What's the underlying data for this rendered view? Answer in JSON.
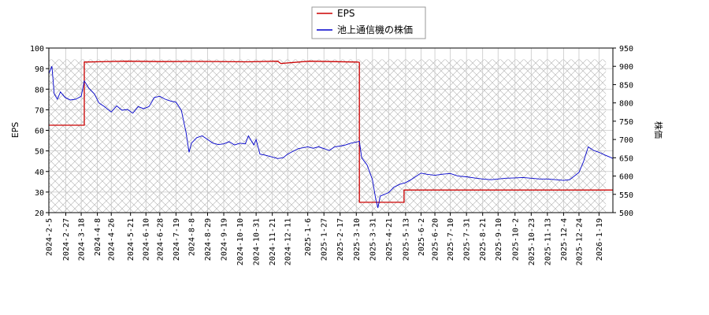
{
  "chart_data": {
    "type": "line",
    "title": "",
    "legend": {
      "position": "top-center",
      "entries": [
        "EPS",
        "池上通信機の株価"
      ]
    },
    "grid": true,
    "ylabel_left": "EPS",
    "ylabel_right": "株価",
    "ylim_left": [
      20,
      100
    ],
    "ylim_right": [
      500,
      950
    ],
    "yticks_left": [
      20,
      30,
      40,
      50,
      60,
      70,
      80,
      90,
      100
    ],
    "yticks_right": [
      500,
      550,
      600,
      650,
      700,
      750,
      800,
      850,
      900,
      950
    ],
    "xlim": [
      "2024-02-05",
      "2026-02-06"
    ],
    "xticks": [
      "2024-2-5",
      "2024-2-27",
      "2024-3-18",
      "2024-4-8",
      "2024-4-26",
      "2024-5-21",
      "2024-6-10",
      "2024-6-28",
      "2024-7-19",
      "2024-8-8",
      "2024-8-29",
      "2024-9-19",
      "2024-10-10",
      "2024-10-31",
      "2024-11-21",
      "2024-12-11",
      "2025-1-6",
      "2025-1-27",
      "2025-2-17",
      "2025-3-10",
      "2025-3-31",
      "2025-4-21",
      "2025-5-13",
      "2025-6-2",
      "2025-6-20",
      "2025-7-10",
      "2025-7-31",
      "2025-8-21",
      "2025-9-10",
      "2025-10-2",
      "2025-10-23",
      "2025-11-13",
      "2025-12-4",
      "2025-12-24",
      "2026-1-19"
    ],
    "hatch_range": [
      "2024-02-05",
      "2026-01-28"
    ],
    "series": [
      {
        "name": "EPS",
        "axis": "left",
        "color": "#cc0000",
        "points": [
          [
            "2024-02-05",
            62.5
          ],
          [
            "2024-03-22",
            62.5
          ],
          [
            "2024-03-22",
            93.2
          ],
          [
            "2024-05-15",
            93.6
          ],
          [
            "2024-06-28",
            93.4
          ],
          [
            "2024-08-15",
            93.5
          ],
          [
            "2024-10-20",
            93.3
          ],
          [
            "2024-11-28",
            93.6
          ],
          [
            "2024-12-02",
            92.5
          ],
          [
            "2025-01-08",
            93.6
          ],
          [
            "2025-03-12",
            93.2
          ],
          [
            "2025-03-14",
            93.0
          ],
          [
            "2025-03-14",
            25.0
          ],
          [
            "2025-05-11",
            25.0
          ],
          [
            "2025-05-11",
            31.0
          ],
          [
            "2026-02-06",
            31.0
          ]
        ]
      },
      {
        "name": "池上通信機の株価",
        "axis": "right",
        "color": "#0000cc",
        "points": [
          [
            "2024-02-05",
            880
          ],
          [
            "2024-02-09",
            900
          ],
          [
            "2024-02-12",
            825
          ],
          [
            "2024-02-16",
            810
          ],
          [
            "2024-02-20",
            830
          ],
          [
            "2024-02-26",
            815
          ],
          [
            "2024-03-04",
            808
          ],
          [
            "2024-03-11",
            810
          ],
          [
            "2024-03-18",
            818
          ],
          [
            "2024-03-22",
            860
          ],
          [
            "2024-03-28",
            840
          ],
          [
            "2024-04-04",
            825
          ],
          [
            "2024-04-10",
            800
          ],
          [
            "2024-04-17",
            790
          ],
          [
            "2024-04-26",
            775
          ],
          [
            "2024-05-03",
            792
          ],
          [
            "2024-05-10",
            780
          ],
          [
            "2024-05-17",
            782
          ],
          [
            "2024-05-24",
            772
          ],
          [
            "2024-05-31",
            790
          ],
          [
            "2024-06-07",
            784
          ],
          [
            "2024-06-14",
            790
          ],
          [
            "2024-06-21",
            815
          ],
          [
            "2024-06-28",
            818
          ],
          [
            "2024-07-05",
            810
          ],
          [
            "2024-07-12",
            805
          ],
          [
            "2024-07-19",
            802
          ],
          [
            "2024-07-26",
            780
          ],
          [
            "2024-08-01",
            720
          ],
          [
            "2024-08-05",
            665
          ],
          [
            "2024-08-08",
            690
          ],
          [
            "2024-08-15",
            705
          ],
          [
            "2024-08-22",
            710
          ],
          [
            "2024-08-29",
            700
          ],
          [
            "2024-09-05",
            690
          ],
          [
            "2024-09-12",
            686
          ],
          [
            "2024-09-19",
            688
          ],
          [
            "2024-09-26",
            694
          ],
          [
            "2024-10-03",
            685
          ],
          [
            "2024-10-10",
            690
          ],
          [
            "2024-10-17",
            688
          ],
          [
            "2024-10-21",
            710
          ],
          [
            "2024-10-28",
            685
          ],
          [
            "2024-10-31",
            700
          ],
          [
            "2024-11-05",
            660
          ],
          [
            "2024-11-12",
            657
          ],
          [
            "2024-11-21",
            652
          ],
          [
            "2024-11-28",
            648
          ],
          [
            "2024-12-05",
            650
          ],
          [
            "2024-12-11",
            660
          ],
          [
            "2024-12-18",
            668
          ],
          [
            "2024-12-25",
            675
          ],
          [
            "2025-01-06",
            680
          ],
          [
            "2025-01-13",
            676
          ],
          [
            "2025-01-20",
            680
          ],
          [
            "2025-01-27",
            675
          ],
          [
            "2025-02-03",
            670
          ],
          [
            "2025-02-10",
            680
          ],
          [
            "2025-02-17",
            682
          ],
          [
            "2025-02-24",
            685
          ],
          [
            "2025-03-03",
            690
          ],
          [
            "2025-03-10",
            693
          ],
          [
            "2025-03-14",
            695
          ],
          [
            "2025-03-17",
            650
          ],
          [
            "2025-03-24",
            630
          ],
          [
            "2025-03-31",
            590
          ],
          [
            "2025-04-04",
            540
          ],
          [
            "2025-04-07",
            513
          ],
          [
            "2025-04-10",
            545
          ],
          [
            "2025-04-21",
            555
          ],
          [
            "2025-04-28",
            570
          ],
          [
            "2025-05-06",
            578
          ],
          [
            "2025-05-13",
            582
          ],
          [
            "2025-05-20",
            590
          ],
          [
            "2025-05-27",
            600
          ],
          [
            "2025-06-02",
            608
          ],
          [
            "2025-06-09",
            605
          ],
          [
            "2025-06-20",
            602
          ],
          [
            "2025-06-30",
            605
          ],
          [
            "2025-07-10",
            607
          ],
          [
            "2025-07-20",
            600
          ],
          [
            "2025-07-31",
            598
          ],
          [
            "2025-08-10",
            595
          ],
          [
            "2025-08-21",
            592
          ],
          [
            "2025-09-01",
            590
          ],
          [
            "2025-09-10",
            592
          ],
          [
            "2025-09-20",
            594
          ],
          [
            "2025-10-02",
            595
          ],
          [
            "2025-10-12",
            596
          ],
          [
            "2025-10-23",
            594
          ],
          [
            "2025-11-03",
            592
          ],
          [
            "2025-11-13",
            592
          ],
          [
            "2025-11-24",
            590
          ],
          [
            "2025-12-04",
            588
          ],
          [
            "2025-12-12",
            590
          ],
          [
            "2025-12-24",
            610
          ],
          [
            "2025-12-30",
            640
          ],
          [
            "2026-01-05",
            680
          ],
          [
            "2026-01-12",
            670
          ],
          [
            "2026-01-19",
            665
          ],
          [
            "2026-01-26",
            658
          ],
          [
            "2026-02-02",
            652
          ],
          [
            "2026-02-06",
            648
          ]
        ]
      }
    ]
  }
}
